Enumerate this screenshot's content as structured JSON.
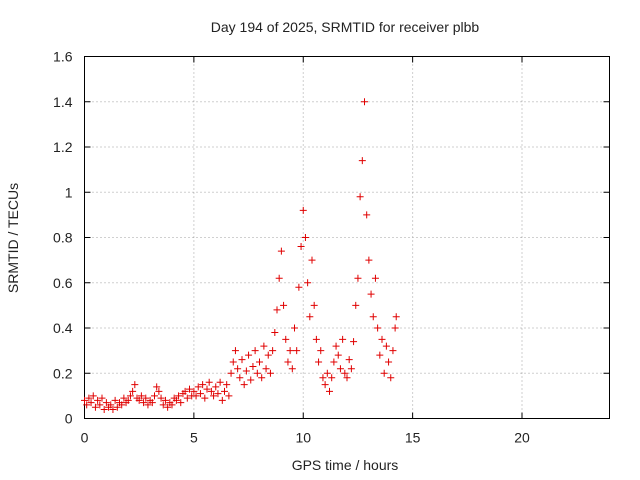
{
  "chart_data": {
    "type": "scatter",
    "title": "Day 194 of 2025, SRMTID for receiver plbb",
    "xlabel": "GPS time / hours",
    "ylabel": "SRMTID / TECUs",
    "xlim": [
      0,
      24
    ],
    "ylim": [
      0,
      1.6
    ],
    "xticks": [
      0,
      5,
      10,
      15,
      20
    ],
    "xtick_labels": [
      "0",
      "5",
      "10",
      "15",
      "20"
    ],
    "yticks": [
      0,
      0.2,
      0.4,
      0.6,
      0.8,
      1,
      1.2,
      1.4,
      1.6
    ],
    "ytick_labels": [
      "0",
      "0.2",
      "0.4",
      "0.6",
      "0.8",
      "1",
      "1.2",
      "1.4",
      "1.6"
    ],
    "grid": true,
    "marker": "+",
    "series": [
      {
        "name": "SRMTID",
        "color": "#e00000",
        "points": [
          [
            0.0,
            0.08
          ],
          [
            0.1,
            0.06
          ],
          [
            0.2,
            0.09
          ],
          [
            0.3,
            0.07
          ],
          [
            0.4,
            0.1
          ],
          [
            0.5,
            0.05
          ],
          [
            0.6,
            0.08
          ],
          [
            0.7,
            0.06
          ],
          [
            0.8,
            0.09
          ],
          [
            0.9,
            0.04
          ],
          [
            1.0,
            0.07
          ],
          [
            1.1,
            0.05
          ],
          [
            1.2,
            0.06
          ],
          [
            1.3,
            0.04
          ],
          [
            1.4,
            0.08
          ],
          [
            1.5,
            0.05
          ],
          [
            1.6,
            0.07
          ],
          [
            1.7,
            0.06
          ],
          [
            1.8,
            0.09
          ],
          [
            1.9,
            0.07
          ],
          [
            2.0,
            0.08
          ],
          [
            2.1,
            0.1
          ],
          [
            2.2,
            0.12
          ],
          [
            2.3,
            0.15
          ],
          [
            2.4,
            0.09
          ],
          [
            2.5,
            0.08
          ],
          [
            2.6,
            0.1
          ],
          [
            2.7,
            0.07
          ],
          [
            2.8,
            0.09
          ],
          [
            2.9,
            0.06
          ],
          [
            3.0,
            0.08
          ],
          [
            3.1,
            0.07
          ],
          [
            3.2,
            0.1
          ],
          [
            3.3,
            0.14
          ],
          [
            3.4,
            0.12
          ],
          [
            3.5,
            0.09
          ],
          [
            3.6,
            0.06
          ],
          [
            3.7,
            0.08
          ],
          [
            3.8,
            0.05
          ],
          [
            3.9,
            0.07
          ],
          [
            4.0,
            0.06
          ],
          [
            4.1,
            0.09
          ],
          [
            4.2,
            0.08
          ],
          [
            4.3,
            0.1
          ],
          [
            4.4,
            0.07
          ],
          [
            4.5,
            0.11
          ],
          [
            4.6,
            0.12
          ],
          [
            4.7,
            0.09
          ],
          [
            4.8,
            0.13
          ],
          [
            4.9,
            0.1
          ],
          [
            5.0,
            0.12
          ],
          [
            5.1,
            0.1
          ],
          [
            5.2,
            0.14
          ],
          [
            5.3,
            0.11
          ],
          [
            5.4,
            0.15
          ],
          [
            5.5,
            0.09
          ],
          [
            5.6,
            0.13
          ],
          [
            5.7,
            0.16
          ],
          [
            5.8,
            0.12
          ],
          [
            5.9,
            0.1
          ],
          [
            6.0,
            0.14
          ],
          [
            6.1,
            0.11
          ],
          [
            6.2,
            0.16
          ],
          [
            6.3,
            0.08
          ],
          [
            6.4,
            0.12
          ],
          [
            6.5,
            0.15
          ],
          [
            6.6,
            0.1
          ],
          [
            6.7,
            0.2
          ],
          [
            6.8,
            0.25
          ],
          [
            6.9,
            0.3
          ],
          [
            7.0,
            0.22
          ],
          [
            7.1,
            0.18
          ],
          [
            7.2,
            0.26
          ],
          [
            7.3,
            0.15
          ],
          [
            7.4,
            0.21
          ],
          [
            7.5,
            0.28
          ],
          [
            7.6,
            0.17
          ],
          [
            7.7,
            0.23
          ],
          [
            7.8,
            0.3
          ],
          [
            7.9,
            0.2
          ],
          [
            8.0,
            0.25
          ],
          [
            8.1,
            0.18
          ],
          [
            8.2,
            0.32
          ],
          [
            8.3,
            0.22
          ],
          [
            8.4,
            0.28
          ],
          [
            8.5,
            0.2
          ],
          [
            8.6,
            0.3
          ],
          [
            8.7,
            0.38
          ],
          [
            8.8,
            0.48
          ],
          [
            8.9,
            0.62
          ],
          [
            9.0,
            0.74
          ],
          [
            9.1,
            0.5
          ],
          [
            9.2,
            0.35
          ],
          [
            9.3,
            0.25
          ],
          [
            9.4,
            0.3
          ],
          [
            9.5,
            0.22
          ],
          [
            9.6,
            0.4
          ],
          [
            9.7,
            0.3
          ],
          [
            9.8,
            0.58
          ],
          [
            9.9,
            0.76
          ],
          [
            10.0,
            0.92
          ],
          [
            10.1,
            0.8
          ],
          [
            10.2,
            0.6
          ],
          [
            10.3,
            0.45
          ],
          [
            10.4,
            0.7
          ],
          [
            10.5,
            0.5
          ],
          [
            10.6,
            0.35
          ],
          [
            10.7,
            0.25
          ],
          [
            10.8,
            0.3
          ],
          [
            10.9,
            0.18
          ],
          [
            11.0,
            0.15
          ],
          [
            11.1,
            0.2
          ],
          [
            11.2,
            0.12
          ],
          [
            11.3,
            0.18
          ],
          [
            11.4,
            0.25
          ],
          [
            11.5,
            0.32
          ],
          [
            11.6,
            0.28
          ],
          [
            11.7,
            0.22
          ],
          [
            11.8,
            0.35
          ],
          [
            11.9,
            0.2
          ],
          [
            12.0,
            0.18
          ],
          [
            12.1,
            0.26
          ],
          [
            12.2,
            0.22
          ],
          [
            12.3,
            0.34
          ],
          [
            12.4,
            0.5
          ],
          [
            12.5,
            0.62
          ],
          [
            12.6,
            0.98
          ],
          [
            12.7,
            1.14
          ],
          [
            12.8,
            1.4
          ],
          [
            12.9,
            0.9
          ],
          [
            13.0,
            0.7
          ],
          [
            13.1,
            0.55
          ],
          [
            13.2,
            0.45
          ],
          [
            13.3,
            0.62
          ],
          [
            13.4,
            0.4
          ],
          [
            13.5,
            0.28
          ],
          [
            13.6,
            0.35
          ],
          [
            13.7,
            0.2
          ],
          [
            13.8,
            0.32
          ],
          [
            13.9,
            0.25
          ],
          [
            14.0,
            0.18
          ],
          [
            14.1,
            0.3
          ],
          [
            14.2,
            0.4
          ],
          [
            14.25,
            0.45
          ]
        ]
      }
    ]
  }
}
